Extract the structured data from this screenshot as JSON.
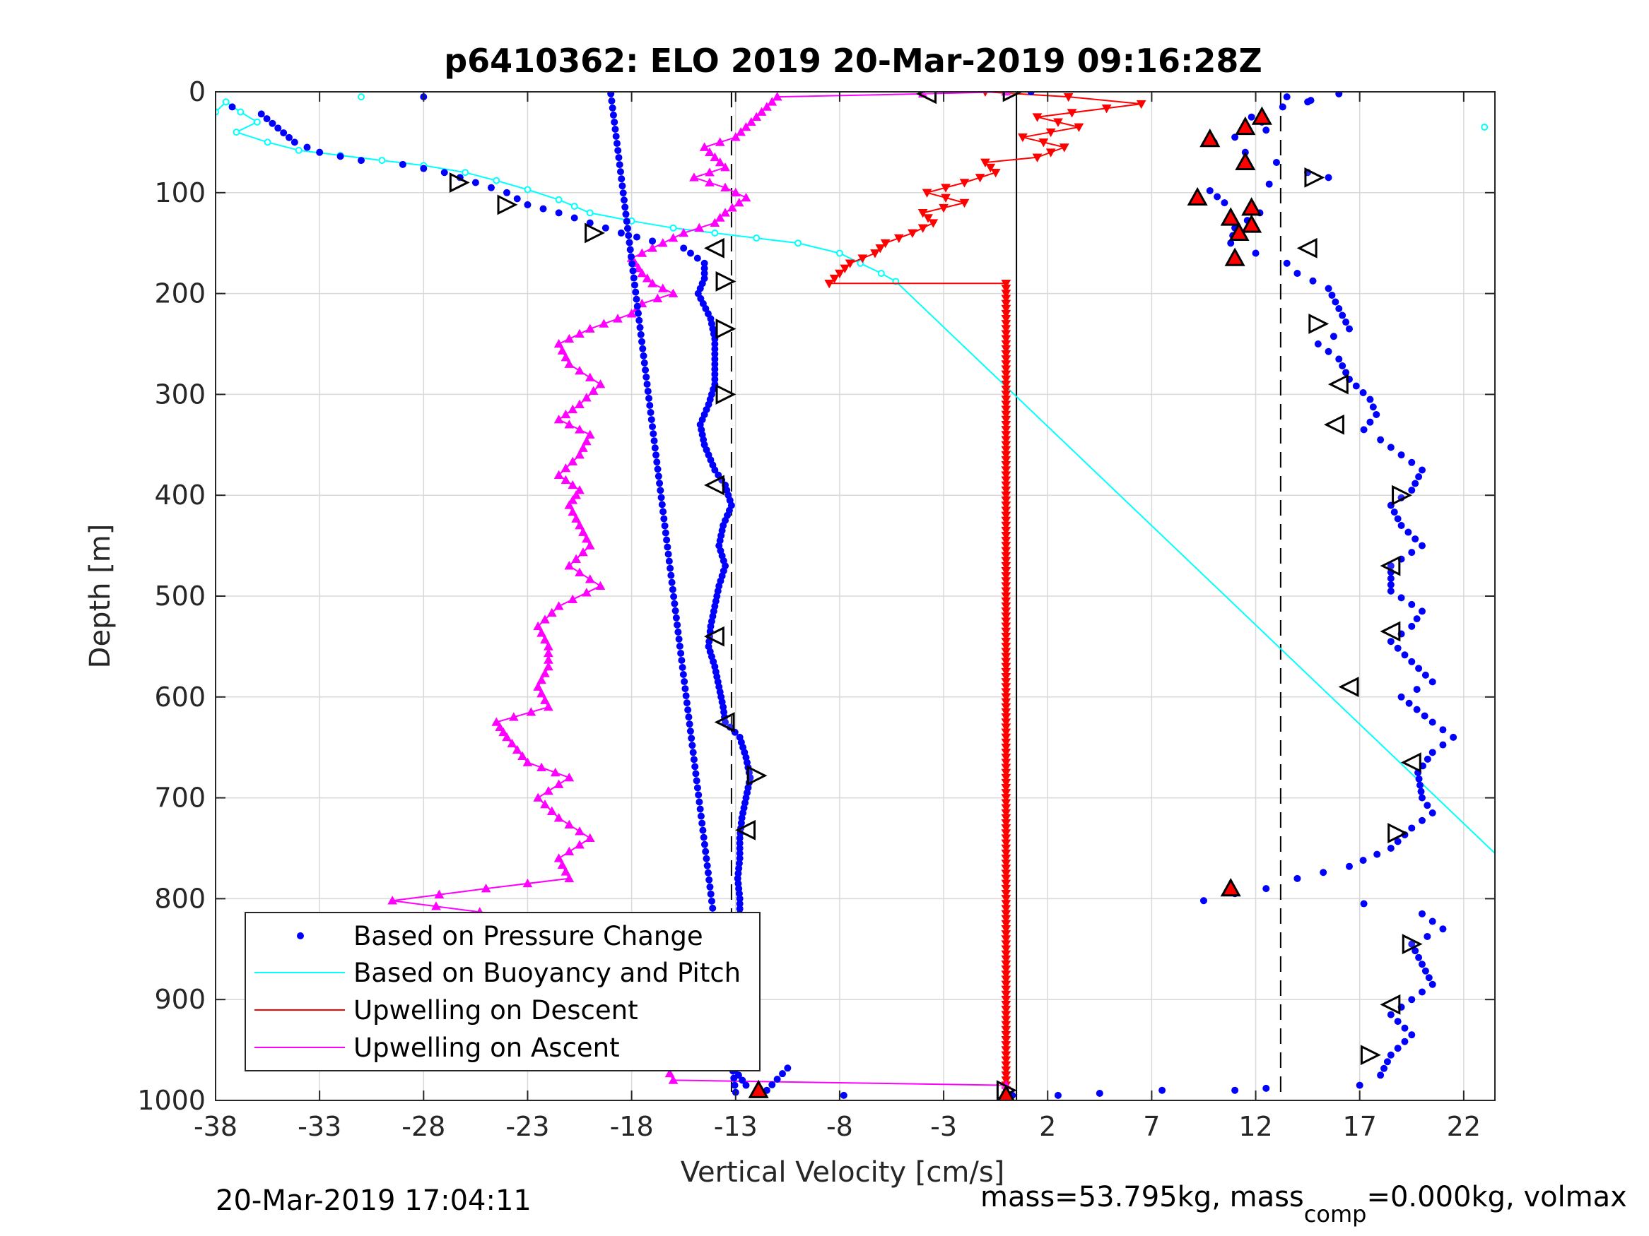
{
  "chart_data": {
    "type": "scatter",
    "title": "p6410362: ELO 2019 20-Mar-2019 09:16:28Z",
    "xlabel": "Vertical Velocity [cm/s]",
    "ylabel": "Depth [m]",
    "xlim": [
      -38,
      23.5
    ],
    "ylim": [
      0,
      1000
    ],
    "y_reversed": true,
    "xticks": [
      "-38",
      "-33",
      "-28",
      "-23",
      "-18",
      "-13",
      "-8",
      "-3",
      "2",
      "7",
      "12",
      "17",
      "22"
    ],
    "yticks": [
      "0",
      "100",
      "200",
      "300",
      "400",
      "500",
      "600",
      "700",
      "800",
      "900",
      "1000"
    ],
    "grid": true,
    "legend_position": "bottom-left",
    "footer_left": "20-Mar-2019 17:04:11",
    "footer_right": {
      "part1": "mass=53.795kg, mass",
      "sub": "comp",
      "part2": "=0.000kg, volmax"
    },
    "reference_lines": [
      {
        "x": 0.5,
        "style": "solid",
        "color": "#000000"
      },
      {
        "x": -13.2,
        "style": "dashed",
        "color": "#000000"
      },
      {
        "x": 13.2,
        "style": "dashed",
        "color": "#000000"
      }
    ],
    "series": [
      {
        "name": "Based on Pressure Change",
        "marker": "dot",
        "color": "#0000ff",
        "down": [
          [
            -37.2,
            15
          ],
          [
            -35.8,
            22
          ],
          [
            -34.2,
            50
          ],
          [
            -33.0,
            60
          ],
          [
            -31.0,
            68
          ],
          [
            -29.0,
            72
          ],
          [
            -27.0,
            80
          ],
          [
            -25.5,
            90
          ],
          [
            -24.0,
            100
          ],
          [
            -23.0,
            112
          ],
          [
            -21.5,
            120
          ],
          [
            -20.0,
            130
          ],
          [
            -18.5,
            140
          ],
          [
            -17.0,
            148
          ],
          [
            -15.5,
            155
          ],
          [
            -14.5,
            170
          ],
          [
            -14.5,
            185
          ],
          [
            -14.8,
            200
          ],
          [
            -14.2,
            225
          ],
          [
            -14.0,
            245
          ],
          [
            -14.0,
            270
          ],
          [
            -14.0,
            290
          ],
          [
            -14.3,
            310
          ],
          [
            -14.7,
            330
          ],
          [
            -14.5,
            350
          ],
          [
            -14.0,
            375
          ],
          [
            -13.5,
            390
          ],
          [
            -13.2,
            410
          ],
          [
            -13.6,
            430
          ],
          [
            -13.8,
            450
          ],
          [
            -13.5,
            470
          ],
          [
            -13.8,
            490
          ],
          [
            -14.0,
            510
          ],
          [
            -14.2,
            530
          ],
          [
            -14.3,
            550
          ],
          [
            -14.0,
            570
          ],
          [
            -13.8,
            590
          ],
          [
            -13.6,
            610
          ],
          [
            -13.5,
            625
          ],
          [
            -12.8,
            640
          ],
          [
            -12.5,
            660
          ],
          [
            -12.3,
            680
          ],
          [
            -12.5,
            700
          ],
          [
            -12.7,
            720
          ],
          [
            -12.8,
            740
          ],
          [
            -12.8,
            760
          ],
          [
            -12.9,
            780
          ],
          [
            -12.8,
            800
          ],
          [
            -12.8,
            820
          ],
          [
            -13.0,
            840
          ],
          [
            -13.0,
            860
          ],
          [
            -13.0,
            880
          ],
          [
            -13.2,
            900
          ],
          [
            -13.3,
            920
          ],
          [
            -13.2,
            940
          ],
          [
            -13.4,
            960
          ],
          [
            -12.5,
            985
          ],
          [
            -11.5,
            990
          ],
          [
            -10.5,
            968
          ],
          [
            -15.5,
            953
          ]
        ],
        "up": [
          [
            1.2,
            0
          ],
          [
            13.5,
            5
          ],
          [
            14.5,
            10
          ],
          [
            16.0,
            2
          ],
          [
            13.3,
            15
          ],
          [
            11.8,
            25
          ],
          [
            12.3,
            30
          ],
          [
            12.5,
            38
          ],
          [
            11.0,
            45
          ],
          [
            10.0,
            50
          ],
          [
            11.5,
            60
          ],
          [
            13.0,
            70
          ],
          [
            14.5,
            80
          ],
          [
            15.5,
            85
          ],
          [
            9.8,
            98
          ],
          [
            10.5,
            110
          ],
          [
            12.2,
            120
          ],
          [
            11.0,
            135
          ],
          [
            10.8,
            150
          ],
          [
            12.0,
            160
          ],
          [
            13.5,
            170
          ],
          [
            14.0,
            180
          ],
          [
            15.5,
            195
          ],
          [
            16.0,
            215
          ],
          [
            16.5,
            235
          ],
          [
            15.0,
            250
          ],
          [
            16.0,
            265
          ],
          [
            16.5,
            285
          ],
          [
            17.5,
            305
          ],
          [
            17.8,
            320
          ],
          [
            17.2,
            335
          ],
          [
            18.0,
            345
          ],
          [
            19.0,
            360
          ],
          [
            20.0,
            375
          ],
          [
            19.5,
            395
          ],
          [
            18.5,
            410
          ],
          [
            19.0,
            430
          ],
          [
            20.0,
            450
          ],
          [
            18.5,
            470
          ],
          [
            18.5,
            495
          ],
          [
            20.0,
            515
          ],
          [
            19.5,
            530
          ],
          [
            18.5,
            545
          ],
          [
            19.5,
            565
          ],
          [
            20.5,
            585
          ],
          [
            19.0,
            600
          ],
          [
            20.5,
            625
          ],
          [
            21.5,
            640
          ],
          [
            20.5,
            655
          ],
          [
            19.8,
            675
          ],
          [
            20.0,
            700
          ],
          [
            20.5,
            715
          ],
          [
            19.5,
            730
          ],
          [
            18.5,
            750
          ],
          [
            16.5,
            768
          ],
          [
            14.0,
            780
          ],
          [
            12.5,
            790
          ],
          [
            11.0,
            795
          ],
          [
            9.5,
            802
          ],
          [
            17.2,
            805
          ],
          [
            20.0,
            815
          ],
          [
            21.0,
            830
          ],
          [
            19.5,
            845
          ],
          [
            20.0,
            865
          ],
          [
            20.5,
            885
          ],
          [
            19.5,
            900
          ],
          [
            18.5,
            915
          ],
          [
            19.5,
            935
          ],
          [
            18.5,
            955
          ],
          [
            18.0,
            975
          ],
          [
            17.0,
            985
          ],
          [
            12.5,
            988
          ],
          [
            11.0,
            990
          ],
          [
            7.5,
            990
          ],
          [
            4.5,
            993
          ],
          [
            2.5,
            995
          ],
          [
            0.3,
            995
          ],
          [
            -7.8,
            995
          ],
          [
            -13.0,
            992
          ],
          [
            -19.0,
            2
          ],
          [
            -28.0,
            5
          ]
        ]
      },
      {
        "name": "Based on Buoyancy and Pitch",
        "marker": "circle-line",
        "color": "#00ffff",
        "points": [
          [
            -38,
            20
          ],
          [
            -37.5,
            10
          ],
          [
            -36.8,
            20
          ],
          [
            -36.0,
            30
          ],
          [
            -37.0,
            40
          ],
          [
            -35.5,
            50
          ],
          [
            -34.0,
            58
          ],
          [
            -32.0,
            63
          ],
          [
            -30.0,
            68
          ],
          [
            -28.0,
            73
          ],
          [
            -26.0,
            80
          ],
          [
            -24.5,
            88
          ],
          [
            -23.0,
            97
          ],
          [
            -21.5,
            107
          ],
          [
            -20.0,
            120
          ],
          [
            -18.0,
            128
          ],
          [
            -16.0,
            135
          ],
          [
            -14.0,
            140
          ],
          [
            -12.0,
            145
          ],
          [
            -10.0,
            150
          ],
          [
            -8.0,
            160
          ],
          [
            -7.0,
            170
          ],
          [
            -6.0,
            180
          ],
          [
            -5.3,
            188
          ],
          [
            23.5,
            755
          ]
        ],
        "extra": [
          [
            -31.0,
            5
          ],
          [
            23.0,
            35
          ]
        ]
      },
      {
        "name": "Upwelling on Descent",
        "marker": "triangle-down-line",
        "color": "#ff0000",
        "points": [
          [
            -1.0,
            0
          ],
          [
            3.0,
            5
          ],
          [
            6.5,
            12
          ],
          [
            1.5,
            25
          ],
          [
            3.5,
            35
          ],
          [
            0.8,
            45
          ],
          [
            2.8,
            55
          ],
          [
            1.5,
            65
          ],
          [
            -1.0,
            70
          ],
          [
            -0.5,
            80
          ],
          [
            -2.0,
            90
          ],
          [
            -3.8,
            100
          ],
          [
            -2.0,
            110
          ],
          [
            -4.0,
            120
          ],
          [
            -3.5,
            130
          ],
          [
            -4.5,
            140
          ],
          [
            -5.8,
            150
          ],
          [
            -6.3,
            160
          ],
          [
            -7.5,
            170
          ],
          [
            -8.0,
            180
          ],
          [
            -8.5,
            190
          ],
          [
            0.0,
            190
          ],
          [
            0.0,
            1000
          ]
        ]
      },
      {
        "name": "Upwelling on Ascent",
        "marker": "triangle-up-line",
        "color": "#ff00ff",
        "points": [
          [
            0.0,
            985
          ],
          [
            -16.0,
            980
          ],
          [
            -16.5,
            960
          ],
          [
            -17.5,
            950
          ],
          [
            -18.0,
            935
          ],
          [
            -18.5,
            915
          ],
          [
            -19.5,
            900
          ],
          [
            -18.5,
            885
          ],
          [
            -19.0,
            860
          ],
          [
            -17.0,
            845
          ],
          [
            -19.0,
            830
          ],
          [
            -29.5,
            802
          ],
          [
            -25.0,
            790
          ],
          [
            -21.0,
            780
          ],
          [
            -21.5,
            760
          ],
          [
            -20.0,
            740
          ],
          [
            -21.5,
            720
          ],
          [
            -22.5,
            700
          ],
          [
            -21.0,
            680
          ],
          [
            -23.0,
            665
          ],
          [
            -24.0,
            640
          ],
          [
            -24.5,
            625
          ],
          [
            -22.0,
            610
          ],
          [
            -22.5,
            590
          ],
          [
            -22.0,
            570
          ],
          [
            -22.0,
            550
          ],
          [
            -22.5,
            530
          ],
          [
            -21.5,
            510
          ],
          [
            -19.5,
            490
          ],
          [
            -21.0,
            470
          ],
          [
            -20.0,
            450
          ],
          [
            -20.5,
            430
          ],
          [
            -21.0,
            410
          ],
          [
            -20.5,
            395
          ],
          [
            -21.5,
            380
          ],
          [
            -20.5,
            360
          ],
          [
            -20.0,
            340
          ],
          [
            -21.5,
            325
          ],
          [
            -20.5,
            310
          ],
          [
            -19.5,
            290
          ],
          [
            -21.0,
            270
          ],
          [
            -21.5,
            250
          ],
          [
            -20.0,
            235
          ],
          [
            -18.0,
            220
          ],
          [
            -17.5,
            210
          ],
          [
            -16.0,
            200
          ],
          [
            -17.0,
            190
          ],
          [
            -17.5,
            180
          ],
          [
            -18.0,
            165
          ],
          [
            -16.5,
            150
          ],
          [
            -15.5,
            140
          ],
          [
            -14.0,
            130
          ],
          [
            -13.5,
            120
          ],
          [
            -12.5,
            105
          ],
          [
            -13.5,
            95
          ],
          [
            -15.0,
            85
          ],
          [
            -13.5,
            75
          ],
          [
            -14.0,
            65
          ],
          [
            -14.5,
            55
          ],
          [
            -13.0,
            45
          ],
          [
            -12.5,
            35
          ],
          [
            -12.0,
            25
          ],
          [
            -11.5,
            15
          ],
          [
            -11.0,
            5
          ],
          [
            -4.0,
            2
          ],
          [
            0.0,
            0
          ]
        ]
      }
    ],
    "markers_right_triangle": [
      [
        0.3,
        0
      ],
      [
        -26.3,
        90
      ],
      [
        -24.0,
        112
      ],
      [
        -19.8,
        140
      ],
      [
        -13.5,
        188
      ],
      [
        -13.5,
        235
      ],
      [
        -13.5,
        300
      ],
      [
        -12.0,
        678
      ],
      [
        -13.2,
        852
      ],
      [
        -13.4,
        950
      ],
      [
        14.8,
        85
      ],
      [
        19.0,
        400
      ],
      [
        15.0,
        230
      ],
      [
        18.8,
        735
      ],
      [
        19.5,
        845
      ],
      [
        17.5,
        955
      ],
      [
        0.0,
        990
      ]
    ],
    "markers_left_triangle": [
      [
        -3.8,
        2
      ],
      [
        -14.0,
        155
      ],
      [
        -14.0,
        390
      ],
      [
        -14.0,
        540
      ],
      [
        -13.5,
        625
      ],
      [
        -12.5,
        732
      ],
      [
        14.5,
        155
      ],
      [
        16.0,
        290
      ],
      [
        15.8,
        330
      ],
      [
        18.5,
        470
      ],
      [
        18.5,
        535
      ],
      [
        16.5,
        590
      ],
      [
        19.5,
        665
      ],
      [
        18.5,
        905
      ]
    ],
    "markers_red_triangle": [
      [
        12.3,
        25
      ],
      [
        11.5,
        35
      ],
      [
        9.8,
        47
      ],
      [
        11.5,
        70
      ],
      [
        9.2,
        105
      ],
      [
        11.8,
        115
      ],
      [
        10.8,
        125
      ],
      [
        11.8,
        132
      ],
      [
        11.2,
        140
      ],
      [
        11.0,
        165
      ],
      [
        10.8,
        790
      ],
      [
        -11.9,
        990
      ],
      [
        0.0,
        995
      ]
    ]
  }
}
